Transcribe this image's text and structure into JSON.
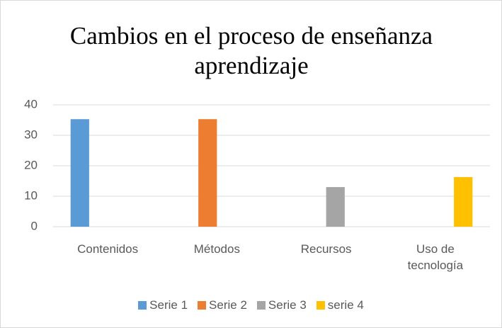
{
  "chart_data": {
    "type": "bar",
    "title": "Cambios en el proceso de enseñanza aprendizaje",
    "categories": [
      "Contenidos",
      "Métodos",
      "Recursos",
      "Uso de tecnología"
    ],
    "series": [
      {
        "name": "Serie 1",
        "color": "#5b9bd5",
        "values": [
          35.3,
          null,
          null,
          null
        ]
      },
      {
        "name": "Serie 2",
        "color": "#ed7d31",
        "values": [
          null,
          35.3,
          null,
          null
        ]
      },
      {
        "name": "Serie 3",
        "color": "#a5a5a5",
        "values": [
          null,
          null,
          13,
          null
        ]
      },
      {
        "name": "serie 4",
        "color": "#ffc000",
        "values": [
          null,
          null,
          null,
          16.3
        ]
      }
    ],
    "ylim": [
      0,
      40
    ],
    "yticks": [
      0,
      10,
      20,
      30,
      40
    ],
    "grid": true,
    "legend": "bottom"
  }
}
